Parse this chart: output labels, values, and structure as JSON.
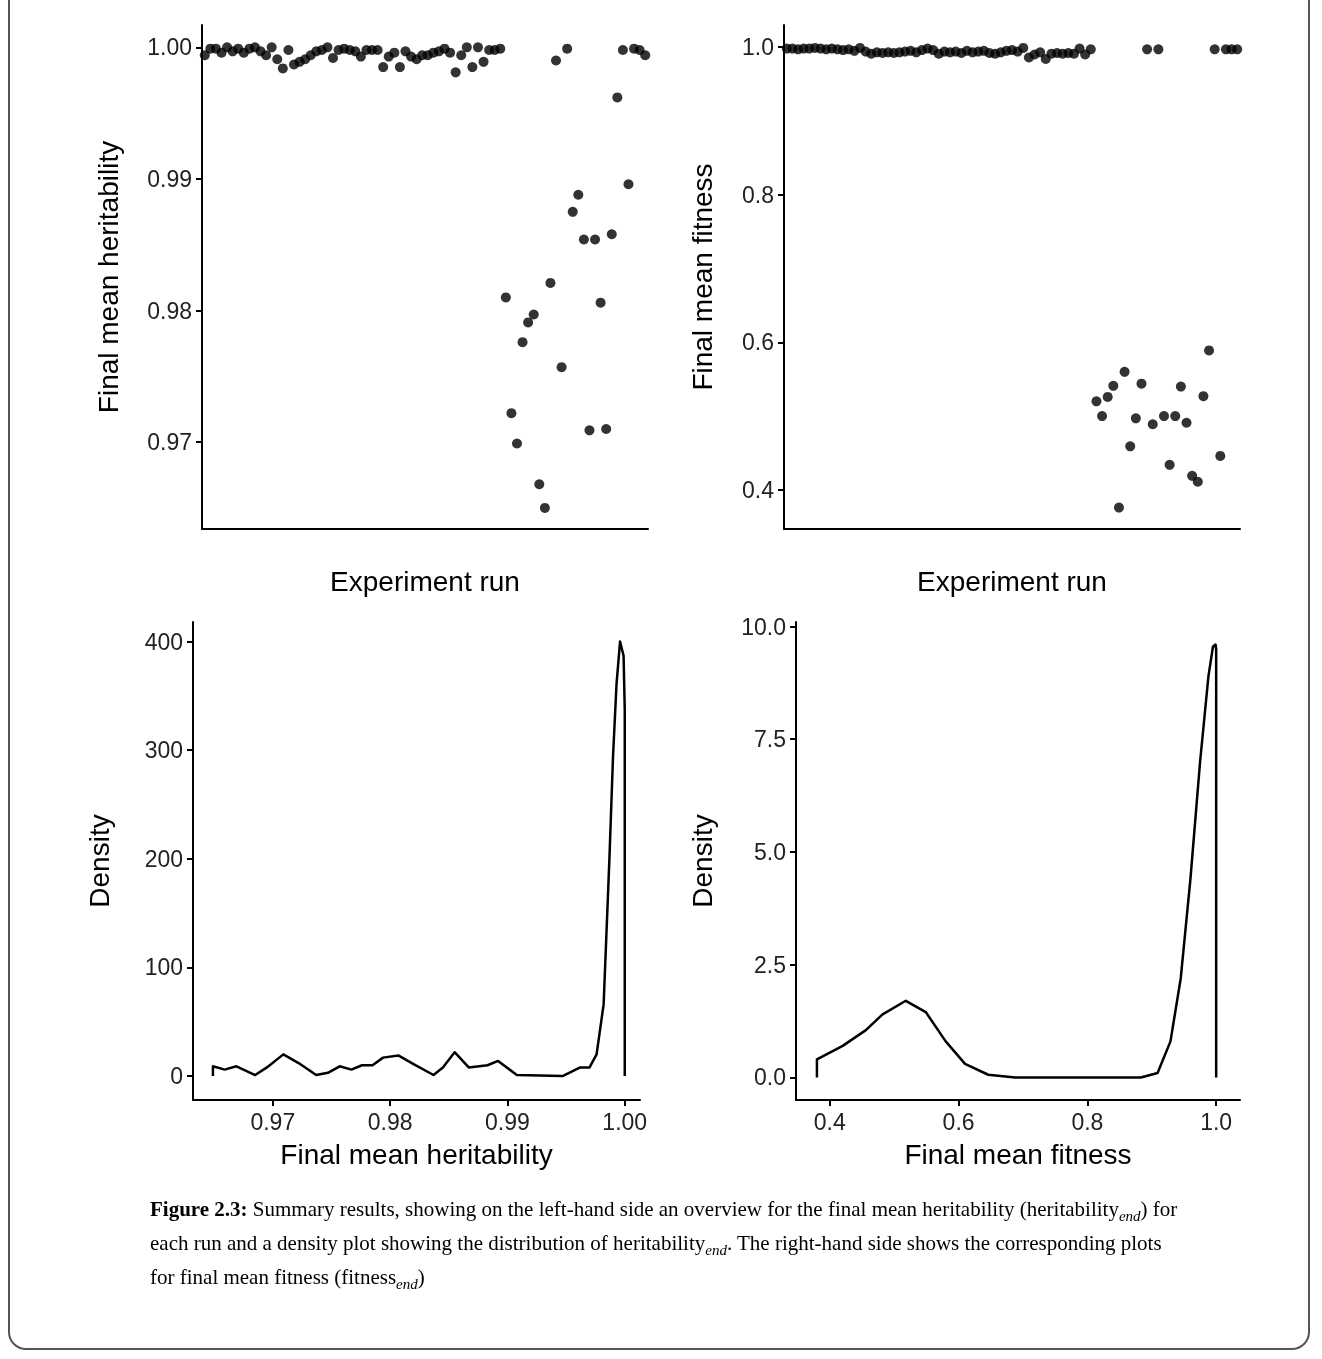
{
  "chart_data": [
    {
      "type": "scatter",
      "ylabel": "Final mean heritability",
      "xlabel": "Experiment run",
      "tick_labels": "y",
      "grid": false,
      "marker": "circle",
      "ylim": [
        0.9634,
        1.0017
      ],
      "yticks": [
        0.97,
        0.98,
        0.99,
        {
          "value": 1,
          "label": "1.00"
        }
      ],
      "categories": [
        null,
        null,
        null,
        null,
        null,
        null,
        null,
        null,
        null,
        null,
        null,
        null,
        null,
        null,
        null,
        null,
        null,
        null,
        null,
        null,
        null,
        null,
        null,
        null,
        null,
        null,
        null,
        null,
        null,
        null,
        null,
        null,
        null,
        null,
        null,
        null,
        null,
        null,
        null,
        null,
        null,
        null,
        null,
        null,
        null,
        null,
        null,
        null,
        null,
        null,
        null,
        null,
        null,
        null,
        null,
        null,
        null,
        null,
        null,
        null,
        null,
        null,
        null,
        null,
        null,
        null,
        null,
        null,
        null,
        null,
        null,
        null,
        null,
        null,
        null,
        null,
        null,
        null,
        null,
        null
      ],
      "series": [
        {
          "color": "#000000",
          "values": [
            0.9994,
            0.9999,
            0.9999,
            0.9996,
            1.0,
            0.9997,
            0.9999,
            0.9996,
            0.9999,
            1.0,
            0.9997,
            0.9994,
            1.0,
            0.9991,
            0.9984,
            0.9998,
            0.9987,
            0.9989,
            0.9991,
            0.9994,
            0.9997,
            0.9998,
            1.0,
            0.9992,
            0.9998,
            0.9999,
            0.9998,
            0.9997,
            0.9993,
            0.9998,
            0.9998,
            0.9998,
            0.9985,
            0.9993,
            0.9996,
            0.9985,
            0.9997,
            0.9993,
            0.9991,
            0.9994,
            0.9994,
            0.9996,
            0.9997,
            0.9999,
            0.9996,
            0.9981,
            0.9994,
            1.0,
            0.9985,
            1.0,
            0.9989,
            0.9998,
            0.9998,
            0.9999,
            0.981,
            0.9722,
            0.9699,
            0.9776,
            0.9791,
            0.9797,
            0.9668,
            0.965,
            0.9821,
            0.999,
            0.9757,
            0.9999,
            0.9875,
            0.9888,
            0.9854,
            0.9709,
            0.9854,
            0.9806,
            0.971,
            0.9858,
            0.9962,
            0.9998,
            0.9896,
            0.9999,
            0.9998,
            0.9994
          ]
        }
      ]
    },
    {
      "type": "scatter",
      "ylabel": "Final mean fitness",
      "xlabel": "Experiment run",
      "tick_labels": "y",
      "grid": false,
      "marker": "circle",
      "ylim": [
        0.347,
        1.03
      ],
      "yticks": [
        0.4,
        0.6,
        0.8,
        {
          "value": 1,
          "label": "1.0"
        }
      ],
      "categories": [
        null,
        null,
        null,
        null,
        null,
        null,
        null,
        null,
        null,
        null,
        null,
        null,
        null,
        null,
        null,
        null,
        null,
        null,
        null,
        null,
        null,
        null,
        null,
        null,
        null,
        null,
        null,
        null,
        null,
        null,
        null,
        null,
        null,
        null,
        null,
        null,
        null,
        null,
        null,
        null,
        null,
        null,
        null,
        null,
        null,
        null,
        null,
        null,
        null,
        null,
        null,
        null,
        null,
        null,
        null,
        null,
        null,
        null,
        null,
        null,
        null,
        null,
        null,
        null,
        null,
        null,
        null,
        null,
        null,
        null,
        null,
        null,
        null,
        null,
        null,
        null,
        null,
        null,
        null,
        null,
        null
      ],
      "series": [
        {
          "color": "#000000",
          "values": [
            0.998,
            0.998,
            0.997,
            0.998,
            0.998,
            0.999,
            0.998,
            0.997,
            0.998,
            0.997,
            0.996,
            0.997,
            0.995,
            0.999,
            0.994,
            0.991,
            0.993,
            0.992,
            0.993,
            0.992,
            0.993,
            0.994,
            0.995,
            0.993,
            0.996,
            0.998,
            0.996,
            0.991,
            0.994,
            0.993,
            0.994,
            0.992,
            0.995,
            0.993,
            0.994,
            0.995,
            0.992,
            0.991,
            0.993,
            0.995,
            0.996,
            0.994,
            0.999,
            0.986,
            0.99,
            0.993,
            0.984,
            0.991,
            0.992,
            0.991,
            0.992,
            0.991,
            0.998,
            0.99,
            0.997,
            0.52,
            0.5,
            0.526,
            0.541,
            0.376,
            0.56,
            0.459,
            0.497,
            0.544,
            0.997,
            0.489,
            0.997,
            0.5,
            0.434,
            0.5,
            0.54,
            0.491,
            0.419,
            0.411,
            0.527,
            0.589,
            0.997,
            0.446,
            0.997,
            0.997,
            0.997
          ]
        }
      ]
    },
    {
      "type": "line",
      "ylabel": "Density",
      "xlabel": "Final mean heritability",
      "grid": false,
      "marker": "none",
      "line_style": "solid",
      "xlim": [
        0.9632,
        1.0013
      ],
      "xticks": [
        0.97,
        0.98,
        0.99,
        {
          "value": 1,
          "label": "1.00"
        }
      ],
      "ylim": [
        -22,
        418
      ],
      "yticks": [
        0,
        100,
        200,
        300,
        400
      ],
      "series": [
        {
          "color": "#000000",
          "x": [
            0.9649,
            0.9649,
            0.9659,
            0.9669,
            0.9685,
            0.9695,
            0.9709,
            0.9722,
            0.9737,
            0.9747,
            0.9757,
            0.9767,
            0.9776,
            0.9785,
            0.9794,
            0.9807,
            0.982,
            0.9837,
            0.9845,
            0.9855,
            0.9867,
            0.9883,
            0.9892,
            0.9908,
            0.9947,
            0.9962,
            0.997,
            0.9976,
            0.9982,
            0.9987,
            0.999,
            0.9993,
            0.9996,
            0.9999,
            1.0,
            1.0
          ],
          "values": [
            0,
            9,
            6,
            9,
            1,
            8,
            20,
            12,
            1,
            3,
            9,
            6,
            10,
            10,
            17,
            19,
            11,
            1,
            8,
            22,
            8,
            10,
            14,
            1,
            0,
            8,
            8,
            20,
            66,
            202,
            294,
            361,
            400,
            387,
            337,
            0
          ]
        }
      ]
    },
    {
      "type": "line",
      "ylabel": "Density",
      "xlabel": "Final mean fitness",
      "grid": false,
      "marker": "none",
      "line_style": "solid",
      "xlim": [
        0.3475,
        1.037
      ],
      "xticks": [
        0.4,
        0.6,
        0.8,
        {
          "value": 1,
          "label": "1.0"
        }
      ],
      "ylim": [
        -0.5,
        10.1
      ],
      "yticks": [
        {
          "value": 0,
          "label": "0.0"
        },
        2.5,
        {
          "value": 5,
          "label": "5.0"
        },
        7.5,
        {
          "value": 10,
          "label": "10.0"
        }
      ],
      "series": [
        {
          "color": "#000000",
          "x": [
            0.38,
            0.38,
            0.42,
            0.456,
            0.482,
            0.518,
            0.549,
            0.58,
            0.61,
            0.646,
            0.688,
            0.883,
            0.909,
            0.929,
            0.945,
            0.96,
            0.975,
            0.988,
            0.995,
            0.999,
            1.0,
            1.0
          ],
          "values": [
            0,
            0.4,
            0.7,
            1.05,
            1.4,
            1.7,
            1.45,
            0.8,
            0.3,
            0.06,
            0,
            0,
            0.1,
            0.8,
            2.2,
            4.4,
            7.0,
            8.9,
            9.55,
            9.6,
            9.5,
            0
          ]
        }
      ],
      "annotations": [
        "Figure 2.3:",
        "Summary results, showing on the left-hand side an overview for the final mean heritability (heritability$_{end}$) for each run and a density plot showing the distribution of heritability$_{end}$. The right-hand side shows the corresponding plots for final mean fitness (fitness$_{end}$)"
      ]
    }
  ]
}
